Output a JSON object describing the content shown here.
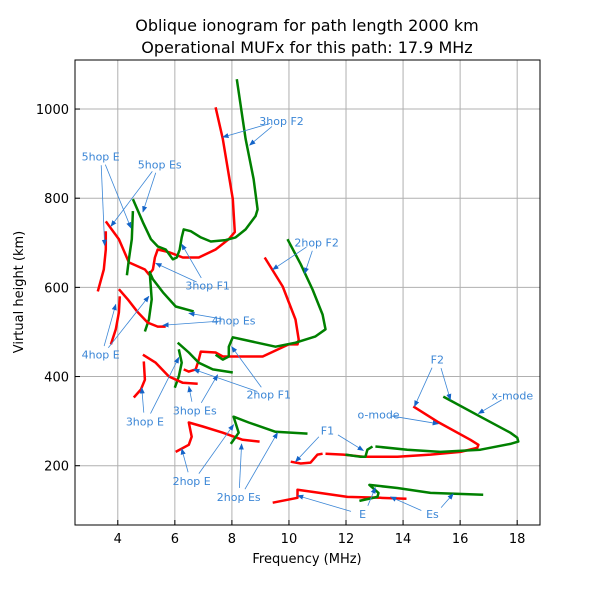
{
  "chart_data": {
    "type": "line",
    "title": [
      "Oblique ionogram for path length 2000 km",
      "Operational MUFx for this path: 17.9 MHz"
    ],
    "xlabel": "Frequency (MHz)",
    "ylabel": "Virtual height (km)",
    "xlim": [
      2.5,
      18.8
    ],
    "ylim": [
      67,
      1110
    ],
    "xticks": [
      4,
      6,
      8,
      10,
      12,
      14,
      16,
      18
    ],
    "yticks": [
      200,
      400,
      600,
      800,
      1000
    ],
    "grid": true,
    "colors": {
      "o_mode": "#ff0000",
      "x_mode": "#008000",
      "annotation": "#3b86d6",
      "arrow": "#1464c8"
    },
    "series": [
      {
        "mode": "o",
        "color": "#ff0000",
        "points": [
          [
            7.43,
            1004
          ],
          [
            7.68,
            933
          ],
          [
            8.03,
            798
          ],
          [
            8.1,
            724
          ],
          [
            7.89,
            708
          ],
          [
            7.43,
            685
          ],
          [
            6.84,
            667
          ],
          [
            6.28,
            667
          ],
          [
            5.79,
            679
          ],
          [
            5.4,
            685
          ],
          [
            5.3,
            667
          ],
          [
            5.23,
            640
          ],
          [
            5.09,
            629
          ],
          [
            4.95,
            640
          ],
          [
            4.39,
            656
          ],
          [
            4.04,
            708
          ],
          [
            3.58,
            748
          ]
        ]
      },
      {
        "mode": "x",
        "color": "#008000",
        "points": [
          [
            8.17,
            1067
          ],
          [
            8.48,
            933
          ],
          [
            8.76,
            843
          ],
          [
            8.9,
            775
          ],
          [
            8.83,
            760
          ],
          [
            8.48,
            730
          ],
          [
            8.13,
            712
          ],
          [
            7.78,
            706
          ],
          [
            7.26,
            703
          ],
          [
            6.91,
            712
          ],
          [
            6.56,
            726
          ],
          [
            6.31,
            730
          ],
          [
            6.24,
            712
          ],
          [
            6.17,
            685
          ],
          [
            6.07,
            667
          ],
          [
            5.93,
            663
          ],
          [
            5.68,
            685
          ],
          [
            5.4,
            692
          ],
          [
            5.16,
            708
          ],
          [
            4.88,
            746
          ],
          [
            4.53,
            798
          ]
        ]
      },
      {
        "mode": "o",
        "color": "#ff0000",
        "points": [
          [
            3.58,
            726
          ],
          [
            3.58,
            685
          ],
          [
            3.51,
            640
          ],
          [
            3.3,
            591
          ]
        ]
      },
      {
        "mode": "x",
        "color": "#008000",
        "points": [
          [
            4.53,
            771
          ],
          [
            4.49,
            708
          ],
          [
            4.39,
            663
          ],
          [
            4.32,
            627
          ]
        ]
      },
      {
        "mode": "x",
        "color": "#008000",
        "points": [
          [
            6.66,
            546
          ],
          [
            6.03,
            557
          ],
          [
            5.58,
            589
          ],
          [
            5.23,
            618
          ],
          [
            5.12,
            634
          ],
          [
            5.19,
            573
          ],
          [
            5.09,
            528
          ],
          [
            4.95,
            501
          ]
        ]
      },
      {
        "mode": "o",
        "color": "#ff0000",
        "points": [
          [
            4.04,
            596
          ],
          [
            4.35,
            573
          ],
          [
            4.7,
            544
          ],
          [
            5.05,
            521
          ],
          [
            5.4,
            512
          ],
          [
            5.68,
            512
          ]
        ]
      },
      {
        "mode": "o",
        "color": "#ff0000",
        "points": [
          [
            4.07,
            580
          ],
          [
            4.04,
            544
          ],
          [
            3.93,
            506
          ],
          [
            3.76,
            472
          ]
        ]
      },
      {
        "mode": "o",
        "color": "#ff0000",
        "points": [
          [
            9.15,
            667
          ],
          [
            9.78,
            602
          ],
          [
            10.23,
            528
          ],
          [
            10.34,
            483
          ],
          [
            10.3,
            472
          ],
          [
            9.99,
            472
          ],
          [
            9.08,
            445
          ],
          [
            8.13,
            445
          ],
          [
            7.68,
            445
          ],
          [
            7.43,
            454
          ],
          [
            6.91,
            456
          ],
          [
            6.84,
            438
          ],
          [
            6.73,
            416
          ],
          [
            6.49,
            411
          ],
          [
            6.31,
            416
          ]
        ]
      },
      {
        "mode": "x",
        "color": "#008000",
        "points": [
          [
            9.95,
            708
          ],
          [
            10.41,
            652
          ],
          [
            10.83,
            595
          ],
          [
            11.18,
            539
          ],
          [
            11.28,
            506
          ],
          [
            10.93,
            490
          ],
          [
            10.23,
            476
          ],
          [
            9.53,
            467
          ],
          [
            8.38,
            483
          ],
          [
            8.03,
            488
          ],
          [
            7.89,
            467
          ],
          [
            7.89,
            445
          ],
          [
            7.68,
            438
          ],
          [
            7.43,
            449
          ]
        ]
      },
      {
        "mode": "x",
        "color": "#008000",
        "points": [
          [
            6.1,
            476
          ],
          [
            6.49,
            454
          ],
          [
            6.84,
            431
          ],
          [
            7.33,
            416
          ],
          [
            8.03,
            409
          ]
        ]
      },
      {
        "mode": "x",
        "color": "#008000",
        "points": [
          [
            6.14,
            461
          ],
          [
            6.24,
            431
          ],
          [
            6.14,
            400
          ],
          [
            6.0,
            375
          ]
        ]
      },
      {
        "mode": "o",
        "color": "#ff0000",
        "points": [
          [
            4.88,
            449
          ],
          [
            5.33,
            431
          ],
          [
            5.79,
            400
          ],
          [
            6.28,
            386
          ],
          [
            6.8,
            384
          ]
        ]
      },
      {
        "mode": "o",
        "color": "#ff0000",
        "points": [
          [
            4.91,
            434
          ],
          [
            4.95,
            393
          ],
          [
            4.81,
            371
          ],
          [
            4.56,
            353
          ]
        ]
      },
      {
        "mode": "o",
        "color": "#ff0000",
        "points": [
          [
            6.03,
            231
          ],
          [
            6.49,
            247
          ],
          [
            6.59,
            265
          ],
          [
            6.49,
            297
          ],
          [
            6.98,
            288
          ],
          [
            7.68,
            274
          ],
          [
            8.38,
            258
          ],
          [
            8.97,
            254
          ]
        ]
      },
      {
        "mode": "x",
        "color": "#008000",
        "points": [
          [
            7.96,
            249
          ],
          [
            8.24,
            274
          ],
          [
            8.06,
            310
          ],
          [
            8.59,
            297
          ],
          [
            9.53,
            276
          ],
          [
            10.65,
            272
          ]
        ]
      },
      {
        "mode": "o",
        "color": "#ff0000",
        "points": [
          [
            10.06,
            209
          ],
          [
            10.41,
            205
          ],
          [
            10.76,
            207
          ],
          [
            11.0,
            225
          ],
          [
            11.18,
            227
          ]
        ]
      },
      {
        "mode": "o",
        "color": "#ff0000",
        "points": [
          [
            11.28,
            227
          ],
          [
            11.91,
            225
          ],
          [
            12.61,
            220
          ],
          [
            13.8,
            220
          ],
          [
            14.96,
            225
          ],
          [
            16.01,
            231
          ],
          [
            16.6,
            240
          ],
          [
            16.64,
            247
          ],
          [
            16.36,
            258
          ],
          [
            15.2,
            299
          ],
          [
            14.36,
            333
          ]
        ]
      },
      {
        "mode": "x",
        "color": "#008000",
        "points": [
          [
            11.98,
            225
          ],
          [
            12.51,
            220
          ],
          [
            12.68,
            220
          ],
          [
            12.75,
            236
          ],
          [
            12.93,
            243
          ]
        ]
      },
      {
        "mode": "x",
        "color": "#008000",
        "points": [
          [
            13.03,
            243
          ],
          [
            14.15,
            236
          ],
          [
            15.31,
            231
          ],
          [
            16.71,
            236
          ],
          [
            17.76,
            249
          ],
          [
            18.04,
            254
          ],
          [
            18.0,
            263
          ],
          [
            17.76,
            274
          ],
          [
            16.71,
            310
          ],
          [
            15.41,
            355
          ]
        ]
      },
      {
        "mode": "o",
        "color": "#ff0000",
        "points": [
          [
            9.43,
            117
          ],
          [
            10.3,
            128
          ],
          [
            10.3,
            146
          ],
          [
            10.86,
            141
          ],
          [
            12.05,
            130
          ],
          [
            13.21,
            128
          ],
          [
            14.12,
            126
          ]
        ]
      },
      {
        "mode": "x",
        "color": "#008000",
        "points": [
          [
            12.47,
            121
          ],
          [
            13.1,
            130
          ],
          [
            13.14,
            139
          ],
          [
            12.82,
            157
          ],
          [
            13.8,
            150
          ],
          [
            14.96,
            139
          ],
          [
            16.81,
            135
          ]
        ]
      }
    ],
    "annotations": [
      {
        "text": "3hop F2",
        "at": [
          9.74,
          973
        ],
        "targets": [
          [
            7.68,
            937
          ],
          [
            8.62,
            919
          ]
        ]
      },
      {
        "text": "5hop E",
        "at": [
          3.4,
          894
        ],
        "targets": [
          [
            3.54,
            694
          ],
          [
            4.46,
            733
          ]
        ]
      },
      {
        "text": "5hop Es",
        "at": [
          5.47,
          876
        ],
        "targets": [
          [
            3.76,
            737
          ],
          [
            4.88,
            769
          ]
        ]
      },
      {
        "text": "3hop F1",
        "at": [
          7.15,
          604
        ],
        "targets": [
          [
            6.24,
            697
          ],
          [
            5.33,
            654
          ]
        ]
      },
      {
        "text": "2hop F2",
        "at": [
          10.97,
          701
        ],
        "targets": [
          [
            9.43,
            640
          ],
          [
            10.55,
            631
          ]
        ]
      },
      {
        "text": "4hop Es",
        "at": [
          8.06,
          526
        ],
        "targets": [
          [
            6.49,
            542
          ],
          [
            5.58,
            515
          ]
        ]
      },
      {
        "text": "4hop E",
        "at": [
          3.4,
          449
        ],
        "targets": [
          [
            3.93,
            562
          ],
          [
            5.09,
            580
          ]
        ]
      },
      {
        "text": "2hop F1",
        "at": [
          9.29,
          360
        ],
        "targets": [
          [
            7.99,
            467
          ],
          [
            6.66,
            416
          ]
        ]
      },
      {
        "text": "3hop Es",
        "at": [
          6.7,
          324
        ],
        "targets": [
          [
            6.49,
            378
          ],
          [
            7.5,
            404
          ]
        ]
      },
      {
        "text": "3hop E",
        "at": [
          4.95,
          299
        ],
        "targets": [
          [
            4.84,
            375
          ],
          [
            6.14,
            443
          ]
        ]
      },
      {
        "text": "2hop E",
        "at": [
          6.59,
          166
        ],
        "targets": [
          [
            6.24,
            238
          ],
          [
            8.06,
            292
          ]
        ]
      },
      {
        "text": "2hop Es",
        "at": [
          8.24,
          130
        ],
        "targets": [
          [
            8.34,
            249
          ],
          [
            9.6,
            274
          ]
        ]
      },
      {
        "text": "F1",
        "at": [
          11.35,
          279
        ],
        "targets": [
          [
            10.23,
            209
          ],
          [
            12.61,
            234
          ]
        ]
      },
      {
        "text": "E",
        "at": [
          12.58,
          92
        ],
        "targets": [
          [
            10.3,
            133
          ],
          [
            13.03,
            151
          ]
        ]
      },
      {
        "text": "Es",
        "at": [
          15.03,
          92
        ],
        "targets": [
          [
            13.56,
            130
          ],
          [
            15.76,
            137
          ]
        ]
      },
      {
        "text": "o-mode",
        "at": [
          13.14,
          315
        ],
        "targets": [
          [
            15.24,
            294
          ]
        ]
      },
      {
        "text": "F2",
        "at": [
          15.2,
          438
        ],
        "targets": [
          [
            14.4,
            333
          ],
          [
            15.66,
            348
          ]
        ]
      },
      {
        "text": "x-mode",
        "at": [
          17.83,
          357
        ],
        "targets": [
          [
            16.64,
            317
          ]
        ]
      }
    ]
  }
}
